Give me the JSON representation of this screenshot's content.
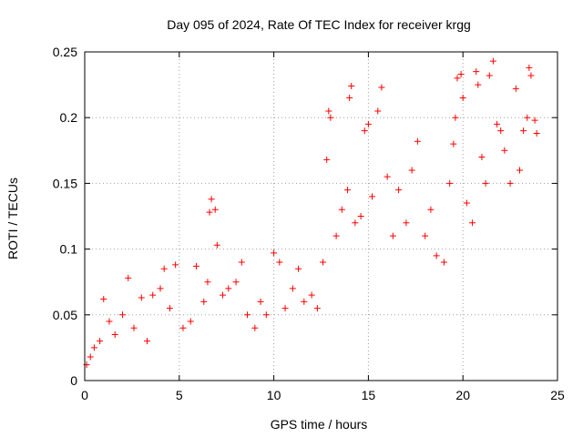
{
  "chart_data": {
    "type": "scatter",
    "title": "Day 095 of 2024, Rate Of TEC Index for receiver krgg",
    "xlabel": "GPS time / hours",
    "ylabel": "ROTI / TECUs",
    "xlim": [
      0,
      25
    ],
    "ylim": [
      0,
      0.25
    ],
    "xticks": [
      0,
      5,
      10,
      15,
      20,
      25
    ],
    "yticks": [
      0,
      0.05,
      0.1,
      0.15,
      0.2,
      0.25
    ],
    "xtick_labels": [
      "0",
      "5",
      "10",
      "15",
      "20",
      "25"
    ],
    "ytick_labels": [
      "0",
      "0.05",
      "0.1",
      "0.15",
      "0.2",
      "0.25"
    ],
    "grid": true,
    "legend": "none",
    "marker": "+",
    "color": "#ff0000",
    "series": [
      {
        "note_x": "time",
        "points": [
          [
            0.1,
            0.012
          ],
          [
            0.3,
            0.018
          ],
          [
            0.5,
            0.025
          ],
          [
            0.8,
            0.03
          ],
          [
            1.0,
            0.062
          ],
          [
            1.3,
            0.045
          ],
          [
            1.6,
            0.035
          ],
          [
            2.0,
            0.05
          ],
          [
            2.3,
            0.078
          ],
          [
            2.6,
            0.04
          ],
          [
            3.0,
            0.063
          ],
          [
            3.3,
            0.03
          ],
          [
            3.6,
            0.065
          ],
          [
            4.0,
            0.07
          ],
          [
            4.2,
            0.085
          ],
          [
            4.5,
            0.055
          ],
          [
            4.8,
            0.088
          ],
          [
            5.2,
            0.04
          ],
          [
            5.6,
            0.045
          ],
          [
            5.9,
            0.087
          ],
          [
            6.3,
            0.06
          ],
          [
            6.5,
            0.075
          ],
          [
            6.6,
            0.128
          ],
          [
            6.7,
            0.138
          ],
          [
            6.9,
            0.13
          ],
          [
            7.0,
            0.103
          ],
          [
            7.3,
            0.065
          ],
          [
            7.6,
            0.07
          ],
          [
            8.0,
            0.075
          ],
          [
            8.3,
            0.09
          ],
          [
            8.6,
            0.05
          ],
          [
            9.0,
            0.04
          ],
          [
            9.3,
            0.06
          ],
          [
            9.6,
            0.05
          ],
          [
            10.0,
            0.097
          ],
          [
            10.3,
            0.09
          ],
          [
            10.6,
            0.055
          ],
          [
            11.0,
            0.07
          ],
          [
            11.3,
            0.085
          ],
          [
            11.6,
            0.06
          ],
          [
            12.0,
            0.065
          ],
          [
            12.3,
            0.055
          ],
          [
            12.6,
            0.09
          ],
          [
            12.8,
            0.168
          ],
          [
            12.9,
            0.205
          ],
          [
            13.0,
            0.2
          ],
          [
            13.3,
            0.11
          ],
          [
            13.6,
            0.13
          ],
          [
            13.9,
            0.145
          ],
          [
            14.0,
            0.215
          ],
          [
            14.1,
            0.224
          ],
          [
            14.3,
            0.12
          ],
          [
            14.6,
            0.125
          ],
          [
            14.8,
            0.19
          ],
          [
            15.0,
            0.195
          ],
          [
            15.2,
            0.14
          ],
          [
            15.5,
            0.205
          ],
          [
            15.7,
            0.223
          ],
          [
            16.0,
            0.155
          ],
          [
            16.3,
            0.11
          ],
          [
            16.6,
            0.145
          ],
          [
            17.0,
            0.12
          ],
          [
            17.3,
            0.16
          ],
          [
            17.6,
            0.182
          ],
          [
            18.0,
            0.11
          ],
          [
            18.3,
            0.13
          ],
          [
            18.6,
            0.095
          ],
          [
            19.0,
            0.09
          ],
          [
            19.3,
            0.15
          ],
          [
            19.5,
            0.18
          ],
          [
            19.6,
            0.2
          ],
          [
            19.7,
            0.23
          ],
          [
            19.9,
            0.233
          ],
          [
            20.0,
            0.215
          ],
          [
            20.2,
            0.135
          ],
          [
            20.5,
            0.12
          ],
          [
            20.7,
            0.235
          ],
          [
            20.8,
            0.225
          ],
          [
            21.0,
            0.17
          ],
          [
            21.2,
            0.15
          ],
          [
            21.4,
            0.232
          ],
          [
            21.6,
            0.243
          ],
          [
            21.8,
            0.195
          ],
          [
            22.0,
            0.19
          ],
          [
            22.2,
            0.175
          ],
          [
            22.5,
            0.15
          ],
          [
            22.8,
            0.222
          ],
          [
            23.0,
            0.16
          ],
          [
            23.2,
            0.19
          ],
          [
            23.4,
            0.2
          ],
          [
            23.5,
            0.238
          ],
          [
            23.6,
            0.232
          ],
          [
            23.8,
            0.198
          ],
          [
            23.9,
            0.188
          ]
        ]
      }
    ]
  }
}
